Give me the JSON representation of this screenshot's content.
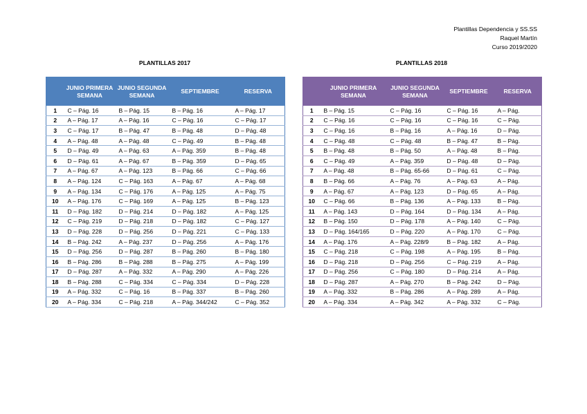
{
  "header": {
    "lines": [
      "Plantillas Dependencia y SS.SS",
      "Raquel Martín",
      "Curso 2019/2020"
    ]
  },
  "tables": [
    {
      "title": "PLANTILLAS 2017",
      "columns": [
        "JUNIO PRIMERA SEMANA",
        "JUNIO SEGUNDA SEMANA",
        "SEPTIEMBRE",
        "RESERVA"
      ],
      "rows": [
        [
          1,
          "C – Pág. 16",
          "B – Pág. 15",
          "B – Pág. 16",
          "A – Pág. 17"
        ],
        [
          2,
          "A – Pág. 17",
          "A – Pág. 16",
          "C – Pág. 16",
          "C – Pág. 17"
        ],
        [
          3,
          "C – Pág. 17",
          "B – Pág. 47",
          "B – Pág. 48",
          "D – Pág. 48"
        ],
        [
          4,
          "A – Pág. 48",
          "A – Pág. 48",
          "C – Pág. 49",
          "B – Pág. 48"
        ],
        [
          5,
          "D – Pág. 49",
          "A – Pág. 63",
          "A – Pág. 359",
          "B – Pág. 48"
        ],
        [
          6,
          "D – Pág. 61",
          "A – Pág. 67",
          "B – Pág. 359",
          "D – Pág. 65"
        ],
        [
          7,
          "A – Pág. 67",
          "A – Pág. 123",
          "B – Pág. 66",
          "C – Pág. 66"
        ],
        [
          8,
          "A – Pág. 124",
          "C – Pág. 163",
          "A – Pág. 67",
          "A – Pág. 68"
        ],
        [
          9,
          "A – Pág. 134",
          "C – Pág. 176",
          "A – Pág. 125",
          "A – Pág. 75"
        ],
        [
          10,
          "A – Pág. 176",
          "C – Pág. 169",
          "A – Pág. 125",
          "B – Pág. 123"
        ],
        [
          11,
          "D – Pág. 182",
          "D – Pág. 214",
          "D – Pág. 182",
          "A – Pág. 125"
        ],
        [
          12,
          "C – Pág. 219",
          "D – Pág. 218",
          "D – Pág. 182",
          "C – Pág. 127"
        ],
        [
          13,
          "D – Pág. 228",
          "D – Pág. 256",
          "D – Pág. 221",
          "C – Pág. 133"
        ],
        [
          14,
          "B – Pág. 242",
          "A – Pág. 237",
          "D – Pág. 256",
          "A – Pág. 176"
        ],
        [
          15,
          "D – Pág. 256",
          "D – Pág. 287",
          "B – Pág. 260",
          "B – Pág. 180"
        ],
        [
          16,
          "B – Pág. 286",
          "B – Pág. 288",
          "B – Pág. 275",
          "A – Pág. 199"
        ],
        [
          17,
          "D – Pág. 287",
          "A – Pág. 332",
          "A – Pág. 290",
          "A – Pág. 226"
        ],
        [
          18,
          "B – Pág. 288",
          "C – Pág. 334",
          "C – Pág. 334",
          "D – Pág. 228"
        ],
        [
          19,
          "A – Pág. 332",
          "C – Pág. 16",
          "B – Pág. 337",
          "B – Pág. 260"
        ],
        [
          20,
          "A – Pág. 334",
          "C – Pág. 218",
          "A – Pág. 344/242",
          "C – Pág. 352"
        ]
      ]
    },
    {
      "title": "PLANTILLAS 2018",
      "columns": [
        "JUNIO PRIMERA SEMANA",
        "JUNIO SEGUNDA SEMANA",
        "SEPTIEMBRE",
        "RESERVA"
      ],
      "rows": [
        [
          1,
          "B – Pág. 15",
          "C – Pág. 16",
          "C – Pág. 16",
          "A – Pág."
        ],
        [
          2,
          "C – Pág. 16",
          "C – Pág. 16",
          "C – Pág. 16",
          "C – Pág."
        ],
        [
          3,
          "C – Pág. 16",
          "B – Pág. 16",
          "A – Pág. 16",
          "D – Pág."
        ],
        [
          4,
          "C – Pág. 48",
          "C – Pág. 48",
          "B – Pág. 47",
          "B – Pág."
        ],
        [
          5,
          "B – Pág. 48",
          "B – Pág. 50",
          "A – Pág. 48",
          "B – Pág."
        ],
        [
          6,
          "C – Pág. 49",
          "A – Pág. 359",
          "D – Pág. 48",
          "D – Pág."
        ],
        [
          7,
          "A – Pág. 48",
          "B – Pág. 65-66",
          "D – Pág. 61",
          "C – Pág."
        ],
        [
          8,
          "B – Pág. 66",
          "A – Pág. 76",
          "A – Pág. 63",
          "A – Pág."
        ],
        [
          9,
          "A – Pág. 67",
          "A – Pág. 123",
          "D – Pág. 65",
          "A – Pág."
        ],
        [
          10,
          "C – Pág. 66",
          "B – Pág. 136",
          "A – Pág. 133",
          "B – Pág."
        ],
        [
          11,
          "A – Pág. 143",
          "D – Pág. 164",
          "D – Pág. 134",
          "A – Pág."
        ],
        [
          12,
          "B – Pág. 150",
          "D – Pág. 178",
          "A – Pág. 140",
          "C – Pág."
        ],
        [
          13,
          "D – Pág. 164/165",
          "D – Pág. 220",
          "A – Pág. 170",
          "C – Pág."
        ],
        [
          14,
          "A – Pág. 176",
          "A – Pág. 228/9",
          "B – Pág. 182",
          "A – Pág."
        ],
        [
          15,
          "C – Pág. 218",
          "C – Pág. 198",
          "A – Pág. 195",
          "B – Pág."
        ],
        [
          16,
          "D – Pág. 218",
          "D – Pág. 256",
          "C – Pág. 219",
          "A – Pág."
        ],
        [
          17,
          "D – Pág. 256",
          "C – Pág. 180",
          "D – Pág. 214",
          "A – Pág."
        ],
        [
          18,
          "D – Pág. 287",
          "A – Pág. 270",
          "B – Pág. 242",
          "D – Pág."
        ],
        [
          19,
          "A – Pág. 332",
          "B – Pág. 286",
          "A – Pág. 289",
          "A – Pág."
        ],
        [
          20,
          "A – Pág. 334",
          "A – Pág. 342",
          "A – Pág. 332",
          "C – Pág."
        ]
      ]
    }
  ]
}
